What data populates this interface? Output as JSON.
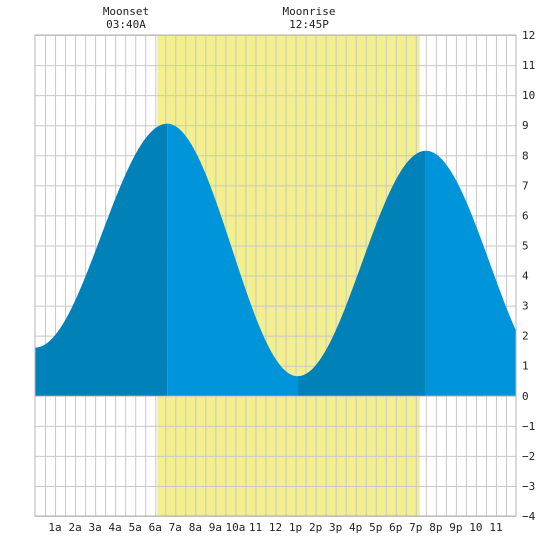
{
  "chart_data": {
    "type": "area",
    "title": "",
    "xlabel": "",
    "ylabel": "",
    "xlim": [
      0,
      24
    ],
    "ylim": [
      -4,
      12
    ],
    "grid": true,
    "x_ticks": [
      {
        "x": 1,
        "label": "1a"
      },
      {
        "x": 2,
        "label": "2a"
      },
      {
        "x": 3,
        "label": "3a"
      },
      {
        "x": 4,
        "label": "4a"
      },
      {
        "x": 5,
        "label": "5a"
      },
      {
        "x": 6,
        "label": "6a"
      },
      {
        "x": 7,
        "label": "7a"
      },
      {
        "x": 8,
        "label": "8a"
      },
      {
        "x": 9,
        "label": "9a"
      },
      {
        "x": 10,
        "label": "10a"
      },
      {
        "x": 11,
        "label": "11"
      },
      {
        "x": 12,
        "label": "12"
      },
      {
        "x": 13,
        "label": "1p"
      },
      {
        "x": 14,
        "label": "2p"
      },
      {
        "x": 15,
        "label": "3p"
      },
      {
        "x": 16,
        "label": "4p"
      },
      {
        "x": 17,
        "label": "5p"
      },
      {
        "x": 18,
        "label": "6p"
      },
      {
        "x": 19,
        "label": "7p"
      },
      {
        "x": 20,
        "label": "8p"
      },
      {
        "x": 21,
        "label": "9p"
      },
      {
        "x": 22,
        "label": "10"
      },
      {
        "x": 23,
        "label": "11"
      }
    ],
    "y_ticks": [
      -4,
      -3,
      -2,
      -1,
      0,
      1,
      2,
      3,
      4,
      5,
      6,
      7,
      8,
      9,
      10,
      11,
      12
    ],
    "moonset": {
      "label": "Moonset",
      "time": "03:40A",
      "x": 3.67
    },
    "moonrise": {
      "label": "Moonrise",
      "time": "12:45P",
      "x": 12.75
    },
    "daylight": {
      "start": 6.1,
      "end": 19.2,
      "color": "#f3ef8e"
    },
    "tide_extremes": [
      {
        "x": 0.0,
        "y": 1.6
      },
      {
        "x": 6.6,
        "y": 9.05
      },
      {
        "x": 13.1,
        "y": 0.65
      },
      {
        "x": 19.5,
        "y": 8.15
      }
    ],
    "curve_end": {
      "x": 24,
      "y": 2.5
    },
    "colors": {
      "rising": "#0082b9",
      "falling": "#0095db",
      "grid": "#c8c8c8",
      "frame": "#b4b4b4",
      "background": "#ffffff"
    }
  }
}
